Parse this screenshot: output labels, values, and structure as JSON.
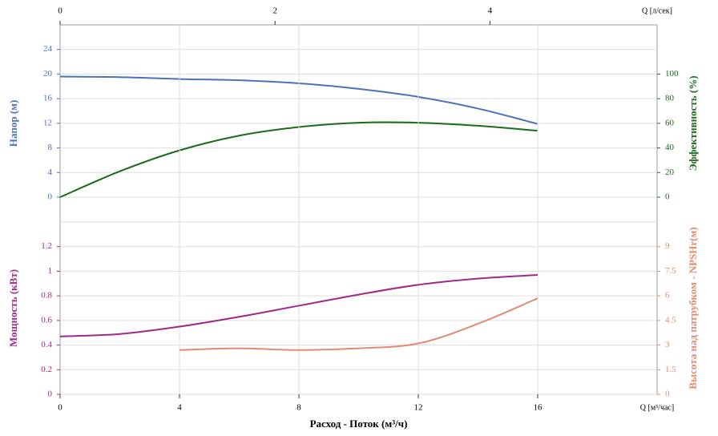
{
  "chart_data": [
    {
      "type": "line",
      "x": [
        0,
        2,
        4,
        6,
        8,
        10,
        12,
        14,
        16
      ],
      "xlim": [
        0,
        20
      ],
      "x2lim": [
        0,
        5.5556
      ],
      "x2ticks": [
        0,
        2,
        4
      ],
      "x2label": "Q [л/сек]",
      "ylabel": "Напор (м)",
      "ylim": [
        -4,
        28
      ],
      "yticks": [
        0,
        4,
        8,
        12,
        16,
        20,
        24
      ],
      "ycolor": "#4a72b8",
      "y2label": "Эффективность (%)",
      "y2lim": [
        -20,
        140
      ],
      "y2ticks": [
        0,
        20,
        40,
        60,
        80,
        100
      ],
      "y2color": "#1a6b1a",
      "grid": true,
      "series": [
        {
          "name": "Напор",
          "color": "#4a72b8",
          "values": [
            19.6,
            19.5,
            19.2,
            19.0,
            18.5,
            17.6,
            16.3,
            14.4,
            11.9
          ]
        },
        {
          "name": "Эффективность",
          "color": "#1a6b1a",
          "axis": "y2",
          "values": [
            0,
            21,
            38,
            50,
            57,
            60.5,
            60.5,
            58,
            54
          ]
        }
      ]
    },
    {
      "type": "line",
      "x": [
        0,
        2,
        4,
        6,
        8,
        10,
        12,
        14,
        16
      ],
      "xlim": [
        0,
        20
      ],
      "xticks": [
        0,
        4,
        8,
        12,
        16
      ],
      "xunit": "Q [м³/час]",
      "xlabel": "Расход - Поток (м³/ч)",
      "ylabel": "Мощность (кВт)",
      "ylim": [
        0,
        1.4
      ],
      "yticks": [
        0,
        0.2,
        0.4,
        0.6,
        0.8,
        1,
        1.2
      ],
      "ycolor": "#a0288c",
      "y2label": "Высота над патрубком - NPSHr(м)",
      "y2lim": [
        0,
        10.5
      ],
      "y2ticks": [
        0,
        1.5,
        3,
        4.5,
        6,
        7.5,
        9
      ],
      "y2color": "#e08a70",
      "grid": true,
      "series": [
        {
          "name": "Мощность",
          "color": "#a0288c",
          "values": [
            0.47,
            0.49,
            0.55,
            0.63,
            0.72,
            0.81,
            0.89,
            0.94,
            0.97
          ]
        },
        {
          "name": "NPSHr",
          "color": "#e08a70",
          "axis": "y2",
          "values": [
            null,
            null,
            2.7,
            2.8,
            2.7,
            2.8,
            3.1,
            4.3,
            5.85
          ]
        }
      ]
    }
  ]
}
